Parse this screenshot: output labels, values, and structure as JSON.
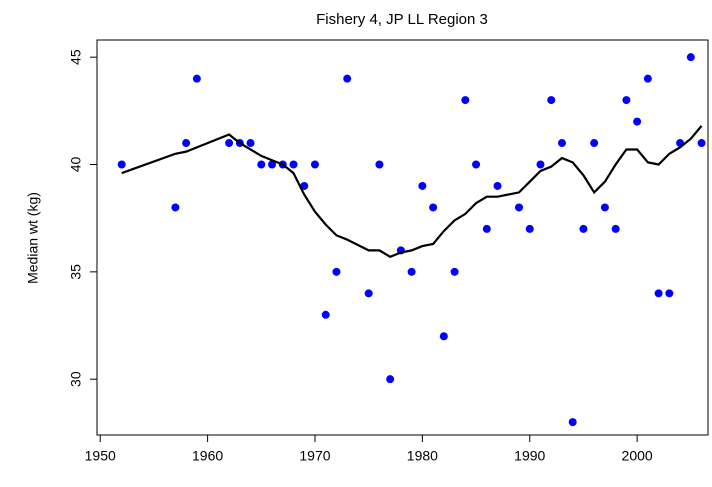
{
  "chart_data": {
    "type": "scatter",
    "title": "Fishery 4, JP LL Region 3",
    "y_label": "Median wt (kg)",
    "x": [
      1952,
      1957,
      1958,
      1959,
      1962,
      1963,
      1964,
      1965,
      1966,
      1967,
      1968,
      1969,
      1970,
      1971,
      1972,
      1973,
      1975,
      1976,
      1977,
      1978,
      1979,
      1980,
      1981,
      1982,
      1983,
      1984,
      1985,
      1986,
      1987,
      1989,
      1990,
      1991,
      1992,
      1993,
      1994,
      1995,
      1996,
      1997,
      1998,
      1999,
      2000,
      2001,
      2002,
      2003,
      2004,
      2005,
      2006
    ],
    "series": [
      {
        "type": "scatter",
        "color": "#0000ff",
        "values": [
          40,
          38,
          41,
          44,
          41,
          41,
          41,
          40,
          40,
          40,
          40,
          39,
          40,
          33,
          35,
          44,
          34,
          40,
          30,
          36,
          35,
          39,
          38,
          32,
          35,
          43,
          40,
          37,
          39,
          38,
          37,
          40,
          43,
          41,
          28,
          37,
          41,
          38,
          37,
          43,
          42,
          44,
          34,
          34,
          41,
          45,
          41
        ]
      },
      {
        "type": "line",
        "color": "#000000",
        "values": [
          39.6,
          40.5,
          40.6,
          40.8,
          41.4,
          41.0,
          40.7,
          40.4,
          40.2,
          40.0,
          39.6,
          38.6,
          37.8,
          37.2,
          36.7,
          36.5,
          36.0,
          36.0,
          35.7,
          35.9,
          36.0,
          36.2,
          36.3,
          36.9,
          37.4,
          37.7,
          38.2,
          38.5,
          38.5,
          38.7,
          39.2,
          39.7,
          39.9,
          40.3,
          40.1,
          39.5,
          38.7,
          39.2,
          40.0,
          40.7,
          40.7,
          40.1,
          40.0,
          40.5,
          40.8,
          41.2,
          41.8
        ]
      }
    ],
    "xlim": [
      1949.7,
      2006.6
    ],
    "ylim": [
      27.4,
      45.8
    ],
    "xticks": [
      1950,
      1960,
      1970,
      1980,
      1990,
      2000
    ],
    "yticks": [
      30,
      35,
      40,
      45
    ]
  }
}
